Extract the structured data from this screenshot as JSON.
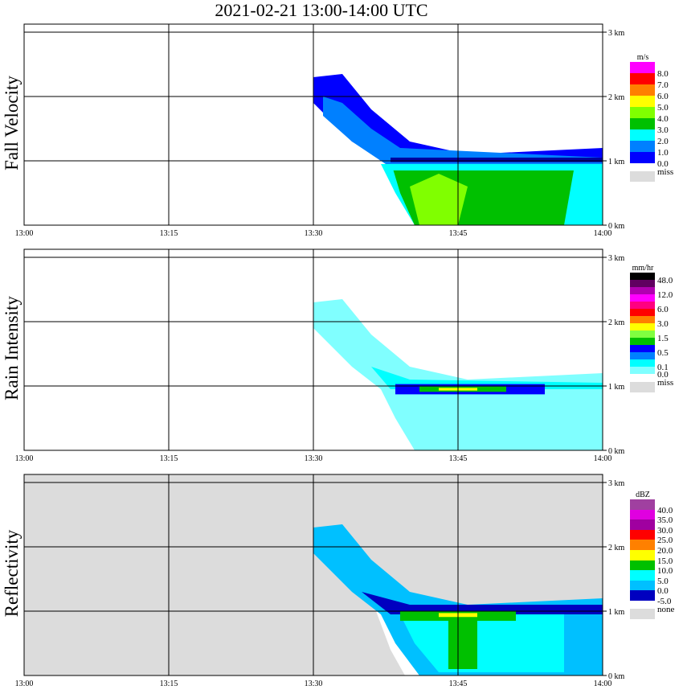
{
  "title": "2021-02-21   13:00-14:00 UTC",
  "chart_data": [
    {
      "type": "heatmap",
      "title": "Fall Velocity",
      "unit": "m/s",
      "background": "#ffffff",
      "xlim": [
        0,
        60
      ],
      "ylim": [
        0,
        3.125
      ],
      "xticks": [
        "13:00",
        "13:15",
        "13:30",
        "13:45",
        "14:00"
      ],
      "yticks": [
        "0 km",
        "1 km",
        "2 km",
        "3 km"
      ],
      "colorbar": [
        {
          "c": "#ff00ff",
          "l": "8.0"
        },
        {
          "c": "#ff0000",
          "l": "7.0"
        },
        {
          "c": "#ff8000",
          "l": "6.0"
        },
        {
          "c": "#ffff00",
          "l": "5.0"
        },
        {
          "c": "#80ff00",
          "l": "4.0"
        },
        {
          "c": "#00c000",
          "l": "3.0"
        },
        {
          "c": "#00ffff",
          "l": "2.0"
        },
        {
          "c": "#0080ff",
          "l": "1.0"
        },
        {
          "c": "#0000ff",
          "l": "0.0"
        }
      ],
      "missing_label": "miss",
      "regions": [
        {
          "c": "#0000ff",
          "pts": [
            [
              30,
              2.3
            ],
            [
              33,
              2.35
            ],
            [
              36,
              1.8
            ],
            [
              40,
              1.3
            ],
            [
              46,
              1.1
            ],
            [
              60,
              1.2
            ],
            [
              60,
              0.95
            ],
            [
              38,
              0.95
            ],
            [
              34,
              1.3
            ],
            [
              30,
              1.9
            ]
          ]
        },
        {
          "c": "#0080ff",
          "pts": [
            [
              31,
              2.0
            ],
            [
              33,
              1.9
            ],
            [
              36,
              1.5
            ],
            [
              39,
              1.2
            ],
            [
              60,
              1.05
            ],
            [
              60,
              0.9
            ],
            [
              38,
              0.9
            ],
            [
              34,
              1.3
            ],
            [
              31,
              1.7
            ]
          ]
        },
        {
          "c": "#00000",
          "pts": []
        },
        {
          "c": "#00ffff",
          "pts": [
            [
              37,
              0.95
            ],
            [
              60,
              0.95
            ],
            [
              60,
              0
            ],
            [
              40.5,
              0
            ],
            [
              38.5,
              0.5
            ]
          ]
        },
        {
          "c": "#00c000",
          "pts": [
            [
              38.3,
              0.85
            ],
            [
              57,
              0.85
            ],
            [
              56,
              0
            ],
            [
              40.5,
              0
            ],
            [
              39,
              0.5
            ]
          ]
        },
        {
          "c": "#80ff00",
          "pts": [
            [
              40,
              0.6
            ],
            [
              43,
              0.8
            ],
            [
              46,
              0.6
            ],
            [
              45,
              0
            ],
            [
              41,
              0
            ]
          ]
        },
        {
          "c": "#0000a0",
          "pts": [
            [
              38,
              1.05
            ],
            [
              60,
              1.05
            ],
            [
              60,
              0.98
            ],
            [
              38,
              0.98
            ]
          ]
        }
      ]
    },
    {
      "type": "heatmap",
      "title": "Rain Intensity",
      "unit": "mm/hr",
      "background": "#ffffff",
      "xlim": [
        0,
        60
      ],
      "ylim": [
        0,
        3.125
      ],
      "xticks": [
        "13:00",
        "13:15",
        "13:30",
        "13:45",
        "14:00"
      ],
      "yticks": [
        "0 km",
        "1 km",
        "2 km",
        "3 km"
      ],
      "colorbar": [
        {
          "c": "#000000",
          "l": "48.0"
        },
        {
          "c": "#600060",
          "l": ""
        },
        {
          "c": "#b000b0",
          "l": "12.0"
        },
        {
          "c": "#ff00ff",
          "l": ""
        },
        {
          "c": "#ff0080",
          "l": "6.0"
        },
        {
          "c": "#ff0000",
          "l": ""
        },
        {
          "c": "#ff8000",
          "l": "3.0"
        },
        {
          "c": "#ffff00",
          "l": ""
        },
        {
          "c": "#80ff40",
          "l": "1.5"
        },
        {
          "c": "#00c000",
          "l": ""
        },
        {
          "c": "#0000ff",
          "l": "0.5"
        },
        {
          "c": "#0080ff",
          "l": ""
        },
        {
          "c": "#00ffff",
          "l": "0.1"
        },
        {
          "c": "#80ffff",
          "l": "0.0"
        }
      ],
      "missing_label": "miss",
      "regions": [
        {
          "c": "#80ffff",
          "pts": [
            [
              30,
              2.3
            ],
            [
              33,
              2.35
            ],
            [
              36,
              1.8
            ],
            [
              40,
              1.3
            ],
            [
              46,
              1.1
            ],
            [
              60,
              1.2
            ],
            [
              60,
              0
            ],
            [
              40.5,
              0
            ],
            [
              38.5,
              0.5
            ],
            [
              37,
              0.95
            ],
            [
              34,
              1.3
            ],
            [
              30,
              1.9
            ]
          ]
        },
        {
          "c": "#00ffff",
          "pts": [
            [
              36,
              1.3
            ],
            [
              40,
              1.1
            ],
            [
              60,
              1.05
            ],
            [
              60,
              0.95
            ],
            [
              38,
              0.95
            ]
          ]
        },
        {
          "c": "#0000ff",
          "pts": [
            [
              38.5,
              1.03
            ],
            [
              54,
              1.03
            ],
            [
              54,
              0.87
            ],
            [
              38.5,
              0.87
            ]
          ]
        },
        {
          "c": "#00c000",
          "pts": [
            [
              41,
              0.99
            ],
            [
              50,
              0.99
            ],
            [
              50,
              0.91
            ],
            [
              41,
              0.91
            ]
          ]
        },
        {
          "c": "#ffff00",
          "pts": [
            [
              43,
              0.97
            ],
            [
              47,
              0.97
            ],
            [
              47,
              0.93
            ],
            [
              43,
              0.93
            ]
          ]
        }
      ]
    },
    {
      "type": "heatmap",
      "title": "Reflectivity",
      "unit": "dBZ",
      "background": "#dcdcdc",
      "xlim": [
        0,
        60
      ],
      "ylim": [
        0,
        3.125
      ],
      "xticks": [
        "13:00",
        "13:15",
        "13:30",
        "13:45",
        "14:00"
      ],
      "yticks": [
        "0 km",
        "1 km",
        "2 km",
        "3 km"
      ],
      "colorbar": [
        {
          "c": "#a040a0",
          "l": "40.0"
        },
        {
          "c": "#e000e0",
          "l": "35.0"
        },
        {
          "c": "#a000a0",
          "l": "30.0"
        },
        {
          "c": "#ff0000",
          "l": "25.0"
        },
        {
          "c": "#ff8000",
          "l": "20.0"
        },
        {
          "c": "#ffff00",
          "l": "15.0"
        },
        {
          "c": "#00c000",
          "l": "10.0"
        },
        {
          "c": "#00ffff",
          "l": "5.0"
        },
        {
          "c": "#00c0ff",
          "l": "0.0"
        },
        {
          "c": "#0000c0",
          "l": "-5.0"
        }
      ],
      "missing_label": "none",
      "regions": [
        {
          "c": "#ffffff",
          "pts": [
            [
              36.5,
              1.0
            ],
            [
              60,
              1.0
            ],
            [
              60,
              0
            ],
            [
              39.5,
              0
            ],
            [
              38,
              0.4
            ]
          ]
        },
        {
          "c": "#00c0ff",
          "pts": [
            [
              30,
              2.3
            ],
            [
              33,
              2.35
            ],
            [
              36,
              1.8
            ],
            [
              40,
              1.3
            ],
            [
              46,
              1.1
            ],
            [
              60,
              1.2
            ],
            [
              60,
              0
            ],
            [
              41,
              0
            ],
            [
              38.5,
              0.5
            ],
            [
              37,
              0.95
            ],
            [
              34,
              1.3
            ],
            [
              30,
              1.9
            ]
          ]
        },
        {
          "c": "#0000c0",
          "pts": [
            [
              35,
              1.3
            ],
            [
              40,
              1.1
            ],
            [
              60,
              1.1
            ],
            [
              60,
              0.95
            ],
            [
              38,
              0.95
            ]
          ]
        },
        {
          "c": "#00ffff",
          "pts": [
            [
              39,
              0.95
            ],
            [
              56,
              0.95
            ],
            [
              56,
              0.05
            ],
            [
              43,
              0.05
            ],
            [
              40.5,
              0.5
            ]
          ]
        },
        {
          "c": "#00c000",
          "pts": [
            [
              39,
              1.0
            ],
            [
              51,
              1.0
            ],
            [
              51,
              0.85
            ],
            [
              39,
              0.85
            ]
          ]
        },
        {
          "c": "#00c000",
          "pts": [
            [
              44,
              0.85
            ],
            [
              47,
              0.85
            ],
            [
              47,
              0.1
            ],
            [
              44,
              0.1
            ]
          ]
        },
        {
          "c": "#ffff00",
          "pts": [
            [
              43,
              0.97
            ],
            [
              47,
              0.97
            ],
            [
              47,
              0.91
            ],
            [
              43,
              0.91
            ]
          ]
        }
      ]
    }
  ]
}
